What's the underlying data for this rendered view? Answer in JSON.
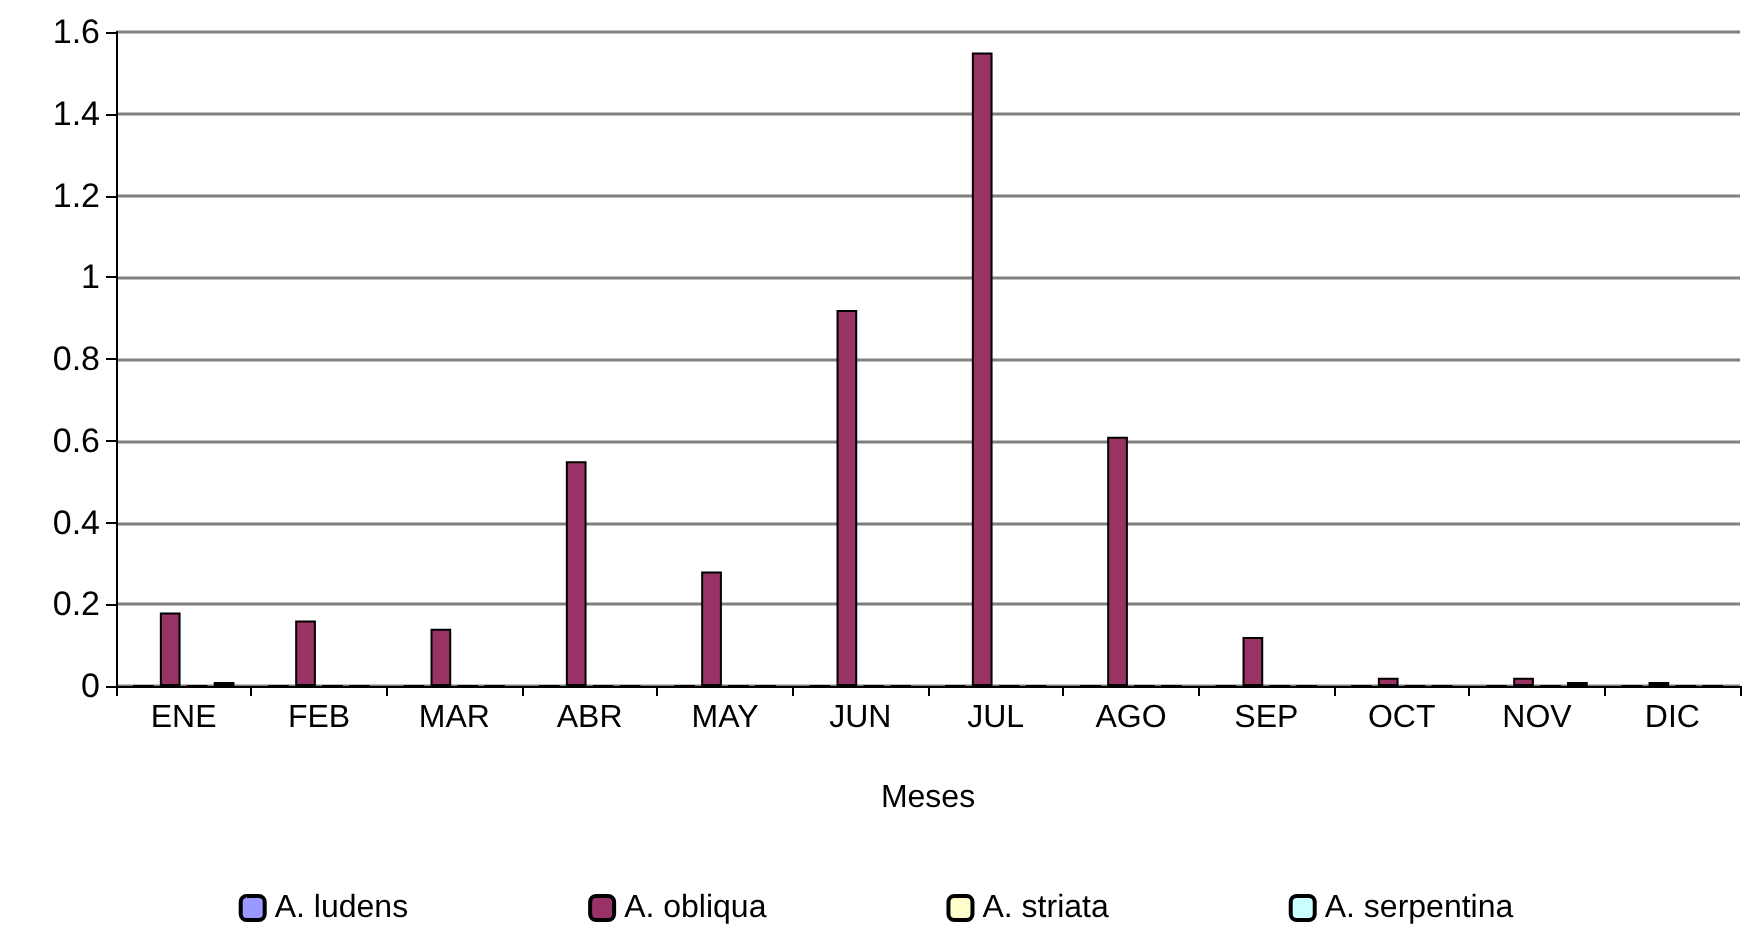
{
  "chart_data": {
    "type": "bar",
    "xlabel": "Meses",
    "categories": [
      "ENE",
      "FEB",
      "MAR",
      "ABR",
      "MAY",
      "JUN",
      "JUL",
      "AGO",
      "SEP",
      "OCT",
      "NOV",
      "DIC"
    ],
    "series": [
      {
        "name": "A. ludens",
        "color": "#9999ff",
        "values": [
          0,
          0,
          0,
          0,
          0,
          0,
          0,
          0,
          0,
          0,
          0,
          0
        ]
      },
      {
        "name": "A. obliqua",
        "color": "#993366",
        "values": [
          0.18,
          0.16,
          0.14,
          0.55,
          0.28,
          0.92,
          1.55,
          0.61,
          0.12,
          0.02,
          0.02,
          0.01
        ]
      },
      {
        "name": "A. striata",
        "color": "#ffffcc",
        "values": [
          0,
          0,
          0,
          0,
          0,
          0,
          0,
          0,
          0,
          0,
          0,
          0
        ]
      },
      {
        "name": "A. serpentina",
        "color": "#ccffff",
        "values": [
          0.01,
          0,
          0,
          0,
          0,
          0,
          0,
          0,
          0,
          0,
          0.01,
          0
        ]
      }
    ],
    "ylim": [
      0,
      1.6
    ],
    "yticks": [
      0,
      0.2,
      0.4,
      0.6,
      0.8,
      1,
      1.2,
      1.4,
      1.6
    ],
    "grid": "y",
    "legend": "bottom"
  }
}
